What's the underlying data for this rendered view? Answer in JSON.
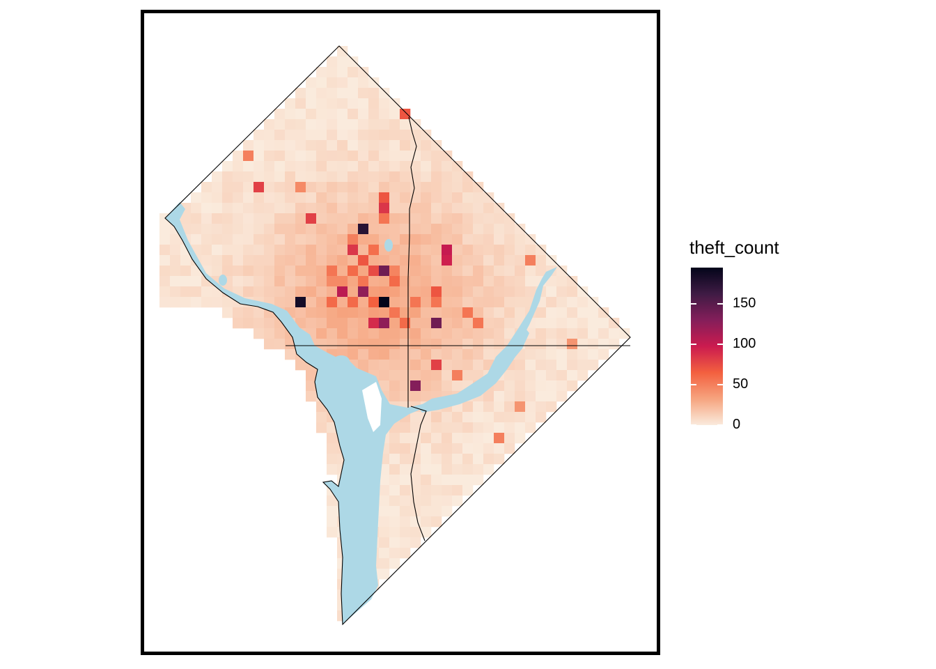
{
  "legend": {
    "title": "theft_count",
    "max": 195,
    "ticks": [
      0,
      50,
      100,
      150
    ],
    "tick_labels": [
      "0",
      "50",
      "100",
      "150"
    ]
  },
  "colors": {
    "scale": [
      "#faebdd",
      "#f6a47f",
      "#f3603f",
      "#cb1b4f",
      "#841e5a",
      "#3f1b44",
      "#03051a"
    ],
    "water": "#add8e6",
    "boundary": "#000000",
    "frame": "#000000"
  },
  "chart_data": {
    "type": "heatmap",
    "variable": "theft_count",
    "value_range": [
      0,
      195
    ],
    "highlight_cells": [
      {
        "value": 195,
        "note": "highest cell, central"
      },
      {
        "value": 185,
        "note": "western edge of core"
      },
      {
        "value": 175,
        "note": "north of core"
      },
      {
        "value": 140,
        "note": "core cluster"
      },
      {
        "value": 140,
        "note": "east of center"
      },
      {
        "value": 130,
        "note": "south of center"
      },
      {
        "value": 125,
        "note": "core cluster"
      },
      {
        "value": 125,
        "note": "core cluster"
      },
      {
        "value": 105,
        "note": "northwest"
      },
      {
        "value": 100,
        "note": "northwest"
      }
    ]
  }
}
